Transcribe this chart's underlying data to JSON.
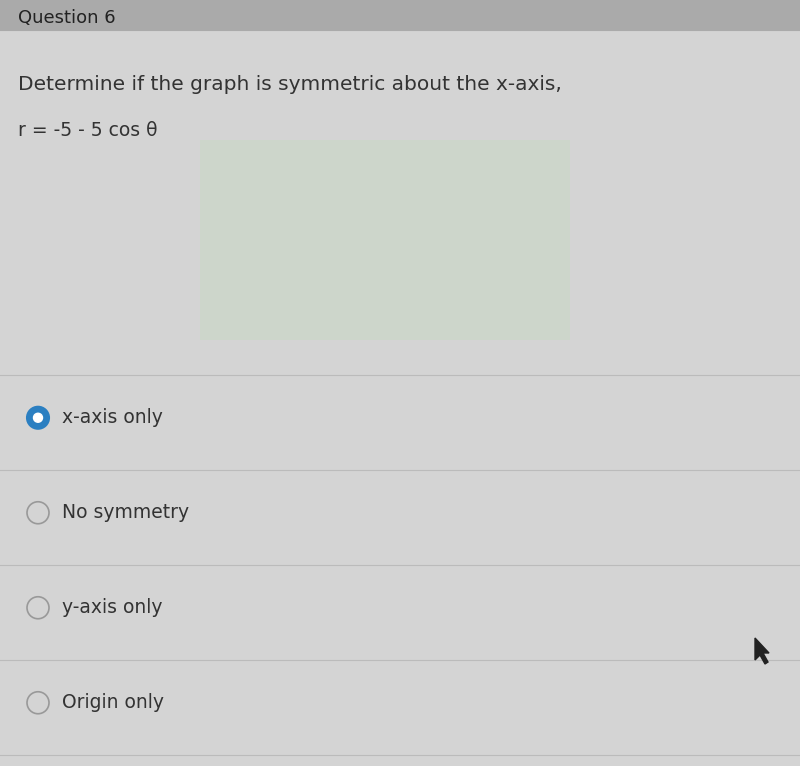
{
  "background_color": "#d4d4d4",
  "header_color": "#aaaaaa",
  "question_text": "Determine if the graph is symmetric about the x-axis,",
  "equation_text": "r = -5 - 5 cos θ",
  "header_partial": "Question 6",
  "options": [
    {
      "label": "x-axis only",
      "selected": true
    },
    {
      "label": "No symmetry",
      "selected": false
    },
    {
      "label": "y-axis only",
      "selected": false
    },
    {
      "label": "Origin only",
      "selected": false
    }
  ],
  "selected_color": "#2b7fc1",
  "selected_border": "#2b7fc1",
  "unselected_fill": "#d4d4d4",
  "unselected_border": "#999999",
  "text_color": "#333333",
  "divider_color": "#bbbbbb",
  "green_patch_color": "#c8d9c4",
  "green_patch_alpha": 0.5,
  "question_fontsize": 14.5,
  "equation_fontsize": 13.5,
  "option_fontsize": 13.5,
  "fig_width": 8.0,
  "fig_height": 7.66
}
